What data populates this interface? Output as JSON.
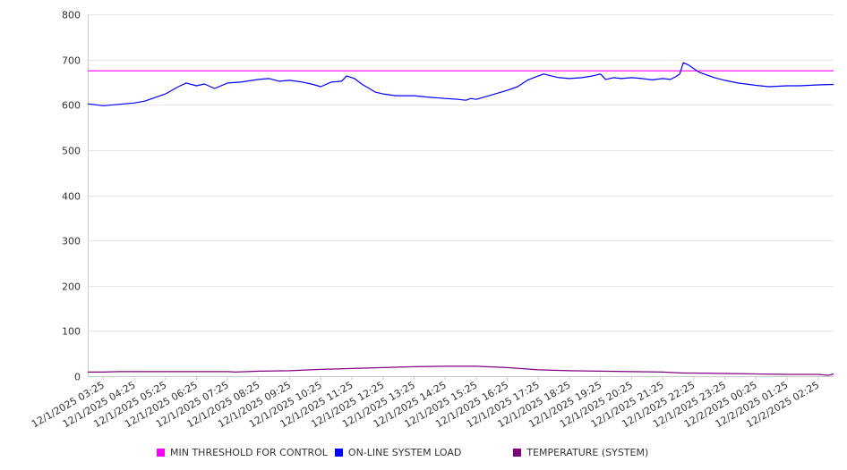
{
  "chart_data": {
    "type": "line",
    "title": "",
    "xlabel": "",
    "ylabel": "",
    "ylim": [
      0,
      800
    ],
    "yticks": [
      0,
      100,
      200,
      300,
      400,
      500,
      600,
      700,
      800
    ],
    "grid": true,
    "legend_position": "bottom",
    "x_tick_labels": [
      "12/1/2025 03:25",
      "12/1/2025 04:25",
      "12/1/2025 05:25",
      "12/1/2025 06:25",
      "12/1/2025 07:25",
      "12/1/2025 08:25",
      "12/1/2025 09:25",
      "12/1/2025 10:25",
      "12/1/2025 11:25",
      "12/1/2025 12:25",
      "12/1/2025 13:25",
      "12/1/2025 14:25",
      "12/1/2025 15:25",
      "12/1/2025 16:25",
      "12/1/2025 17:25",
      "12/1/2025 18:25",
      "12/1/2025 19:25",
      "12/1/2025 20:25",
      "12/1/2025 21:25",
      "12/1/2025 22:25",
      "12/1/2025 23:25",
      "12/2/2025 00:25",
      "12/2/2025 01:25",
      "12/2/2025 02:25"
    ],
    "x_range": [
      "12/1/2025 02:55",
      "12/2/2025 02:55"
    ],
    "series": [
      {
        "name": "MIN THRESHOLD FOR CONTROL",
        "color": "#ff00ff",
        "points": [
          [
            "12/1/2025 02:55",
            675
          ],
          [
            "12/2/2025 02:55",
            675
          ]
        ]
      },
      {
        "name": "ON-LINE SYSTEM LOAD",
        "color": "#0000ff",
        "points": [
          [
            "12/1/2025 02:55",
            602
          ],
          [
            "12/1/2025 03:25",
            598
          ],
          [
            "12/1/2025 03:45",
            600
          ],
          [
            "12/1/2025 04:25",
            604
          ],
          [
            "12/1/2025 04:45",
            608
          ],
          [
            "12/1/2025 05:25",
            624
          ],
          [
            "12/1/2025 05:50",
            640
          ],
          [
            "12/1/2025 06:05",
            648
          ],
          [
            "12/1/2025 06:25",
            642
          ],
          [
            "12/1/2025 06:40",
            646
          ],
          [
            "12/1/2025 07:00",
            636
          ],
          [
            "12/1/2025 07:25",
            648
          ],
          [
            "12/1/2025 07:50",
            650
          ],
          [
            "12/1/2025 08:25",
            656
          ],
          [
            "12/1/2025 08:45",
            658
          ],
          [
            "12/1/2025 09:05",
            652
          ],
          [
            "12/1/2025 09:25",
            654
          ],
          [
            "12/1/2025 09:50",
            650
          ],
          [
            "12/1/2025 10:10",
            645
          ],
          [
            "12/1/2025 10:25",
            640
          ],
          [
            "12/1/2025 10:45",
            650
          ],
          [
            "12/1/2025 11:05",
            652
          ],
          [
            "12/1/2025 11:15",
            664
          ],
          [
            "12/1/2025 11:30",
            658
          ],
          [
            "12/1/2025 11:45",
            645
          ],
          [
            "12/1/2025 12:00",
            635
          ],
          [
            "12/1/2025 12:10",
            628
          ],
          [
            "12/1/2025 12:25",
            624
          ],
          [
            "12/1/2025 12:50",
            620
          ],
          [
            "12/1/2025 13:25",
            620
          ],
          [
            "12/1/2025 13:50",
            617
          ],
          [
            "12/1/2025 14:25",
            614
          ],
          [
            "12/1/2025 14:50",
            612
          ],
          [
            "12/1/2025 15:05",
            610
          ],
          [
            "12/1/2025 15:15",
            614
          ],
          [
            "12/1/2025 15:25",
            612
          ],
          [
            "12/1/2025 15:50",
            620
          ],
          [
            "12/1/2025 16:25",
            632
          ],
          [
            "12/1/2025 16:45",
            640
          ],
          [
            "12/1/2025 17:05",
            655
          ],
          [
            "12/1/2025 17:25",
            664
          ],
          [
            "12/1/2025 17:35",
            668
          ],
          [
            "12/1/2025 17:50",
            664
          ],
          [
            "12/1/2025 18:05",
            660
          ],
          [
            "12/1/2025 18:25",
            658
          ],
          [
            "12/1/2025 18:50",
            660
          ],
          [
            "12/1/2025 19:10",
            664
          ],
          [
            "12/1/2025 19:25",
            668
          ],
          [
            "12/1/2025 19:35",
            656
          ],
          [
            "12/1/2025 19:50",
            660
          ],
          [
            "12/1/2025 20:05",
            658
          ],
          [
            "12/1/2025 20:25",
            660
          ],
          [
            "12/1/2025 20:45",
            658
          ],
          [
            "12/1/2025 21:05",
            655
          ],
          [
            "12/1/2025 21:25",
            658
          ],
          [
            "12/1/2025 21:40",
            656
          ],
          [
            "12/1/2025 21:50",
            662
          ],
          [
            "12/1/2025 21:58",
            668
          ],
          [
            "12/1/2025 22:05",
            693
          ],
          [
            "12/1/2025 22:15",
            688
          ],
          [
            "12/1/2025 22:25",
            680
          ],
          [
            "12/1/2025 22:35",
            672
          ],
          [
            "12/1/2025 22:50",
            666
          ],
          [
            "12/1/2025 23:05",
            660
          ],
          [
            "12/1/2025 23:25",
            654
          ],
          [
            "12/1/2025 23:50",
            648
          ],
          [
            "12/2/2025 00:25",
            643
          ],
          [
            "12/2/2025 00:50",
            640
          ],
          [
            "12/2/2025 01:25",
            642
          ],
          [
            "12/2/2025 01:50",
            642
          ],
          [
            "12/2/2025 02:25",
            644
          ],
          [
            "12/2/2025 02:55",
            645
          ]
        ]
      },
      {
        "name": "TEMPERATURE (SYSTEM)",
        "color": "#800080",
        "points": [
          [
            "12/1/2025 02:55",
            9
          ],
          [
            "12/1/2025 03:25",
            9
          ],
          [
            "12/1/2025 03:55",
            10
          ],
          [
            "12/1/2025 05:25",
            10
          ],
          [
            "12/1/2025 07:25",
            10
          ],
          [
            "12/1/2025 07:40",
            9
          ],
          [
            "12/1/2025 08:25",
            11
          ],
          [
            "12/1/2025 09:25",
            12
          ],
          [
            "12/1/2025 10:25",
            15
          ],
          [
            "12/1/2025 11:25",
            17
          ],
          [
            "12/1/2025 12:25",
            19
          ],
          [
            "12/1/2025 13:25",
            21
          ],
          [
            "12/1/2025 14:25",
            22
          ],
          [
            "12/1/2025 15:25",
            22
          ],
          [
            "12/1/2025 16:25",
            19
          ],
          [
            "12/1/2025 17:25",
            14
          ],
          [
            "12/1/2025 18:25",
            12
          ],
          [
            "12/1/2025 19:25",
            11
          ],
          [
            "12/1/2025 20:25",
            10
          ],
          [
            "12/1/2025 21:25",
            9
          ],
          [
            "12/1/2025 22:05",
            7
          ],
          [
            "12/1/2025 22:25",
            7
          ],
          [
            "12/1/2025 23:25",
            6
          ],
          [
            "12/2/2025 00:25",
            5
          ],
          [
            "12/2/2025 01:25",
            4
          ],
          [
            "12/2/2025 02:25",
            4
          ],
          [
            "12/2/2025 02:45",
            2
          ],
          [
            "12/2/2025 02:55",
            5
          ]
        ]
      }
    ]
  }
}
